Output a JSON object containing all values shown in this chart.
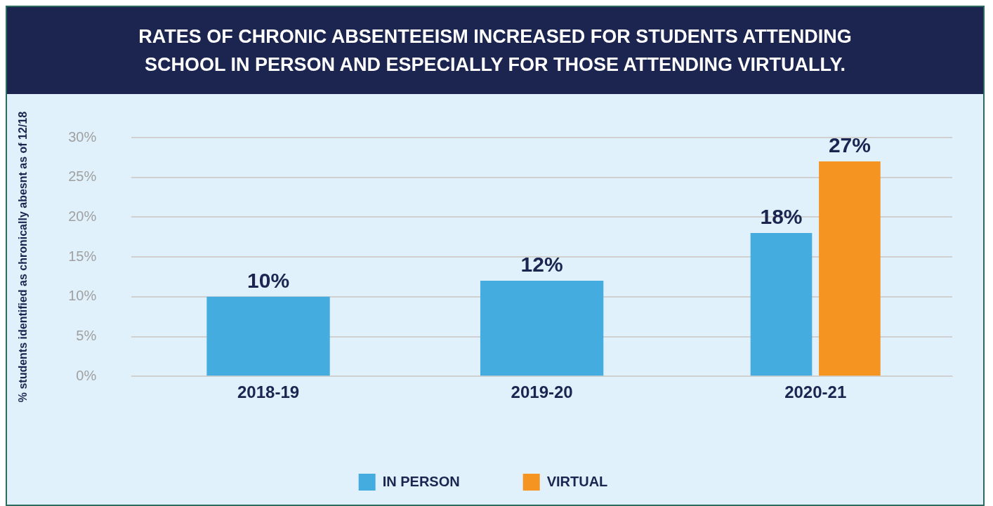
{
  "chart_data": {
    "type": "bar",
    "title": "RATES OF CHRONIC ABSENTEEISM INCREASED FOR STUDENTS ATTENDING SCHOOL IN PERSON AND ESPECIALLY FOR THOSE ATTENDING VIRTUALLY.",
    "ylabel": "% students identified as chronically abesnt as of 12/18",
    "categories": [
      "2018-19",
      "2019-20",
      "2020-21"
    ],
    "series": [
      {
        "name": "IN PERSON",
        "color": "#45ace0",
        "values": [
          10,
          12,
          18
        ],
        "value_labels": [
          "10%",
          "12%",
          "18%"
        ]
      },
      {
        "name": "VIRTUAL",
        "color": "#f59421",
        "values": [
          null,
          null,
          27
        ],
        "value_labels": [
          null,
          null,
          "27%"
        ]
      }
    ],
    "ylim": [
      0,
      30
    ],
    "yticks": [
      {
        "value": 0,
        "label": "0%"
      },
      {
        "value": 5,
        "label": "5%"
      },
      {
        "value": 10,
        "label": "10%"
      },
      {
        "value": 15,
        "label": "15%"
      },
      {
        "value": 20,
        "label": "20%"
      },
      {
        "value": 25,
        "label": "25%"
      },
      {
        "value": 30,
        "label": "30%"
      }
    ],
    "grid": "y",
    "legend": "bottom"
  }
}
